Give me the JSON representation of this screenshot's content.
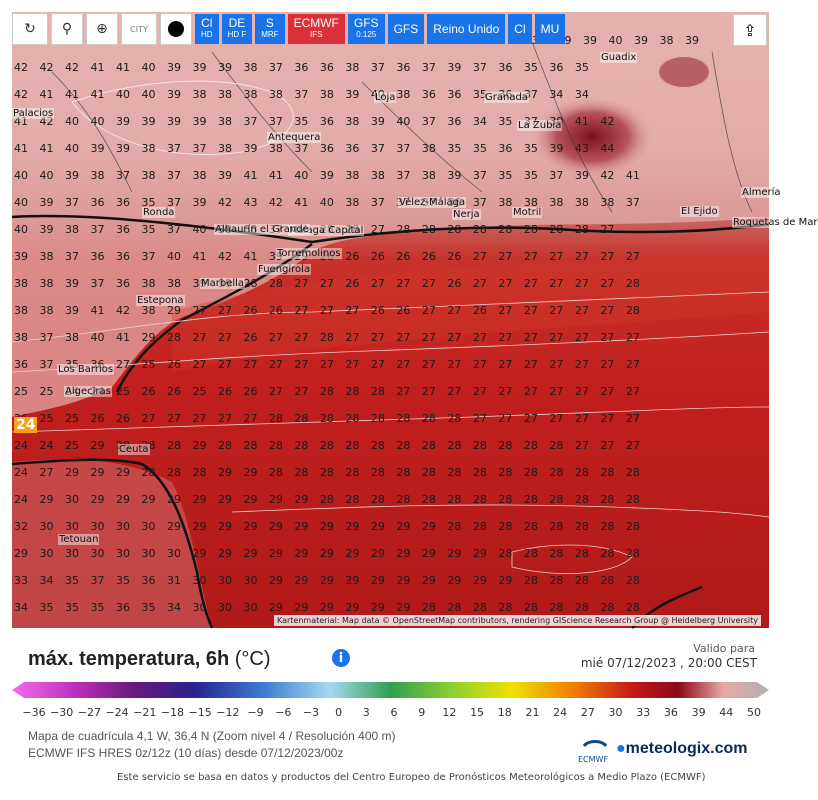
{
  "toolbar": {
    "city_label": "CITY",
    "models": [
      {
        "label": "Cl",
        "sub": "HD",
        "active": false
      },
      {
        "label": "DE",
        "sub": "HD F",
        "active": false
      },
      {
        "label": "S",
        "sub": "MRF",
        "active": false
      },
      {
        "label": "ECMWF",
        "sub": "IFS",
        "active": true
      },
      {
        "label": "GFS",
        "sub": "0.125",
        "active": false
      },
      {
        "label": "GFS",
        "sub": "",
        "active": false
      },
      {
        "label": "Reino Unido",
        "sub": "",
        "active": false
      },
      {
        "label": "Cl",
        "sub": "",
        "active": false
      },
      {
        "label": "MU",
        "sub": "",
        "active": false
      }
    ]
  },
  "map": {
    "cities": [
      "Guadix",
      "Granada",
      "La Zubia",
      "Loja",
      "Antequera",
      "Palacios",
      "Ronda",
      "Vélez-Málaga",
      "Nerja",
      "Motril",
      "El Ejido",
      "Málaga Capital",
      "Alhaurín el Grande",
      "Torremolinos",
      "Fuengirola",
      "Marbella",
      "Estepona",
      "Los Barrios",
      "Algeciras",
      "Ceuta",
      "Tetouan",
      "Roquetas de Mar",
      "Almería"
    ],
    "left_edge_value": "24",
    "grid_rows": [
      "37 39 39 40 39 38 39",
      "42 42 42 41 41 40 39 39 39 38 37 36 36 38 37 36 37 39 37 36 35 36 35",
      "42 41 41 41 40 40 39 38 38 38 38 37 38 39 40 38 36 36 35 36 37 34 34",
      "41 42 40 40 39 39 39 39 38 37 37 35 36 38 39 40 37 36 34 35 37 39 41 42",
      "41 41 40 39 39 38 37 37 38 39 38 37 36 36 37 37 38 35 35 36 35 39 43 44",
      "40 40 39 38 37 38 37 38 39 41 41 40 39 38 38 37 38 39 37 35 35 37 39 42 41",
      "40 39 37 36 36 35 37 39 42 43 42 41 40 38 37 37 37 36 37 38 38 38 38 38 37",
      "40 39 38 37 36 35 37 40 38 38 37 36 28 28 27 28 28 28 28 28 28 28 28 27",
      "39 38 37 36 36 37 40 41 42 41 39 29 26 26 26 26 26 26 27 27 27 27 27 27 27",
      "38 38 39 37 36 38 38 39 39 28 28 27 27 26 27 27 27 26 27 27 27 27 27 27 28",
      "38 38 39 41 42 38 29 27 27 26 26 27 27 27 26 26 27 27 26 27 27 27 27 27 28",
      "38 37 38 40 41 29 28 27 27 26 27 27 28 27 27 27 27 27 27 27 27 27 27 27 27",
      "36 37 35 36 27 25 26 27 27 27 27 27 27 27 27 27 27 27 27 27 27 27 27 27 27",
      "25 25 24 24 25 26 26 25 26 26 27 27 28 28 28 27 27 27 27 27 27 27 27 27 27",
      "26 25 25 26 26 27 27 27 27 27 28 28 28 28 28 28 28 28 27 27 27 27 27 27 27",
      "24 24 25 29 28 28 28 29 28 28 28 28 28 28 28 28 28 28 28 28 28 28 27 27 27",
      "24 27 29 29 29 28 28 28 29 29 28 28 28 28 28 28 28 28 28 28 28 28 28 28 28",
      "24 29 30 29 29 29 29 29 29 29 29 29 28 28 28 28 28 28 28 28 28 28 28 28 28",
      "32 30 30 30 30 30 29 29 29 29 29 29 29 29 29 29 29 28 28 28 28 28 28 28 28",
      "29 30 30 30 30 30 30 29 29 29 29 29 29 29 29 29 29 29 29 28 28 28 28 28 28",
      "33 34 35 37 35 36 31 30 30 30 29 29 29 29 29 29 29 29 29 29 28 28 28 28 28",
      "34 35 35 35 36 35 34 30 30 30 29 29 29 29 29 29 28 28 28 28 28 28 28 28 28"
    ],
    "credits": "Kartenmaterial: Map data © OpenStreetMap contributors, rendering GIScience Research Group @ Heidelberg University"
  },
  "legend": {
    "title": "máx. temperatura, 6h",
    "unit": "(°C)",
    "valid_label": "Valido para",
    "valid_datetime": "mié 07/12/2023 , 20:00 CEST",
    "ticks": [
      "−36",
      "−30",
      "−27",
      "−24",
      "−21",
      "−18",
      "−15",
      "−12",
      "−9",
      "−6",
      "−3",
      "0",
      "3",
      "6",
      "9",
      "12",
      "15",
      "18",
      "21",
      "24",
      "27",
      "30",
      "33",
      "36",
      "39",
      "44",
      "50"
    ],
    "info": [
      "Mapa de cuadrícula 4,1 W, 36,4 N (Zoom nivel 4 / Resolución 400 m)",
      "ECMWF IFS HRES 0z/12z (10 días) desde 07/12/2023/00z"
    ],
    "ecmwf_label": "ECMWF",
    "brand": "meteologix.com",
    "footer": "Este servicio se basa en datos y productos del Centro Europeo de Pronósticos Meteorológicos a Medio Plazo (ECMWF)"
  }
}
